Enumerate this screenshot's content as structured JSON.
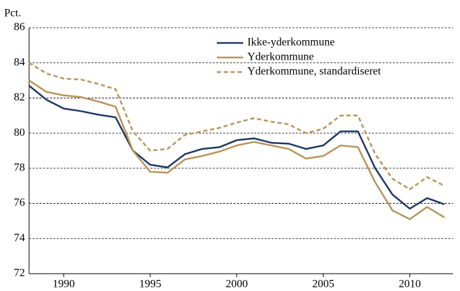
{
  "chart_data": {
    "type": "line",
    "y_label": "Pct.",
    "x": [
      1988,
      1989,
      1990,
      1991,
      1992,
      1993,
      1994,
      1995,
      1996,
      1997,
      1998,
      1999,
      2000,
      2001,
      2002,
      2003,
      2004,
      2005,
      2006,
      2007,
      2008,
      2009,
      2010,
      2011,
      2012
    ],
    "series": [
      {
        "name": "Ikke-yderkommune",
        "color": "#1f3864",
        "style": "solid",
        "values": [
          82.7,
          81.9,
          81.4,
          81.25,
          81.05,
          80.9,
          79.0,
          78.2,
          78.05,
          78.8,
          79.1,
          79.2,
          79.6,
          79.7,
          79.45,
          79.4,
          79.1,
          79.3,
          80.1,
          80.1,
          78.0,
          76.5,
          75.7,
          76.3,
          75.95
        ]
      },
      {
        "name": "Yderkommune",
        "color": "#b8955a",
        "style": "solid",
        "values": [
          83.0,
          82.35,
          82.15,
          82.05,
          81.8,
          81.5,
          79.0,
          77.8,
          77.75,
          78.5,
          78.7,
          78.95,
          79.3,
          79.5,
          79.3,
          79.1,
          78.55,
          78.7,
          79.3,
          79.2,
          77.2,
          75.6,
          75.1,
          75.8,
          75.2
        ]
      },
      {
        "name": "Yderkommune, standardiseret",
        "color": "#b8955a",
        "style": "dashed",
        "values": [
          84.0,
          83.4,
          83.1,
          83.05,
          82.8,
          82.5,
          80.1,
          79.0,
          79.1,
          79.9,
          80.1,
          80.3,
          80.6,
          80.85,
          80.65,
          80.5,
          80.0,
          80.25,
          81.0,
          81.0,
          78.8,
          77.4,
          76.8,
          77.5,
          77.0
        ]
      }
    ],
    "xlim": [
      1988,
      2012.5
    ],
    "xticks": [
      1990,
      1995,
      2000,
      2005,
      2010
    ],
    "ylim": [
      72,
      86
    ],
    "yticks": [
      72,
      74,
      76,
      78,
      80,
      82,
      84,
      86
    ],
    "grid": true,
    "legend": "upper right"
  }
}
